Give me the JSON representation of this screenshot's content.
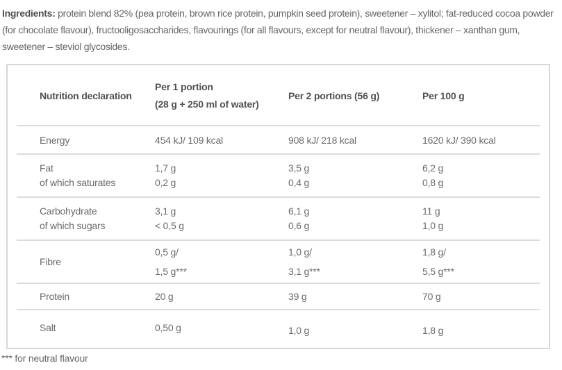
{
  "ingredients": {
    "label": "Ingredients:",
    "text": " protein blend 82% (pea protein, brown rice protein, pumpkin seed protein), sweetener – xylitol; fat-reduced cocoa powder (for chocolate flavour), fructooligosaccharides, flavourings (for all flavours, except for neutral flavour), thickener – xanthan gum, sweetener – steviol glycosides."
  },
  "table": {
    "header": {
      "col1": "Nutrition declaration",
      "col2_line1": "Per 1 portion",
      "col2_line2": "(28 g + 250 ml of water)",
      "col3": "Per 2 portions (56 g)",
      "col4": "Per 100 g"
    },
    "rows": {
      "energy": {
        "label": "Energy",
        "per1": "454 kJ/ 109 kcal",
        "per2": "908 kJ/ 218 kcal",
        "per100": "1620 kJ/ 390 kcal"
      },
      "fat": {
        "label1": "Fat",
        "label2": "of which saturates",
        "per1_1": "1,7 g",
        "per1_2": "0,2 g",
        "per2_1": "3,5 g",
        "per2_2": "0,4 g",
        "per100_1": "6,2 g",
        "per100_2": "0,8 g"
      },
      "carbohydrate": {
        "label1": "Carbohydrate",
        "label2": "of which sugars",
        "per1_1": "3,1 g",
        "per1_2": "< 0,5 g",
        "per2_1": "6,1 g",
        "per2_2": "0,6 g",
        "per100_1": "11 g",
        "per100_2": "1,0 g"
      },
      "fibre": {
        "label": "Fibre",
        "per1_1": "0,5 g/",
        "per1_2": "1,5 g***",
        "per2_1": "1,0 g/",
        "per2_2": "3,1 g***",
        "per100_1": "1,8 g/",
        "per100_2": "5,5 g***"
      },
      "protein": {
        "label": "Protein",
        "per1": "20 g",
        "per2": "39 g",
        "per100": "70 g"
      },
      "salt": {
        "label": "Salt",
        "per1": "0,50 g",
        "per2": "1,0 g",
        "per100": "1,8 g"
      }
    }
  },
  "footnote": "*** for neutral flavour",
  "colors": {
    "background": "#ffffff",
    "text_regular": "#696a6d",
    "text_bold": "#4f5054",
    "table_border": "#d7d7d7",
    "row_divider": "#dcdcdc"
  }
}
